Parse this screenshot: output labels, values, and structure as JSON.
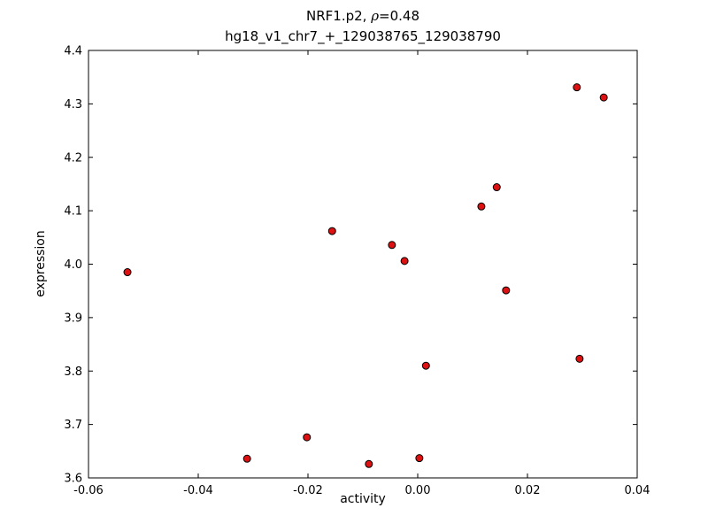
{
  "figure": {
    "title_prefix": "NRF1.p2, ",
    "title_rho": "ρ",
    "title_suffix": "=0.48",
    "subtitle": "hg18_v1_chr7_+_129038765_129038790",
    "xlabel": "activity",
    "ylabel": "expression"
  },
  "chart_data": {
    "type": "scatter",
    "title": "NRF1.p2, ρ=0.48",
    "subtitle": "hg18_v1_chr7_+_129038765_129038790",
    "xlabel": "activity",
    "ylabel": "expression",
    "xlim": [
      -0.06,
      0.04
    ],
    "ylim": [
      3.6,
      4.4
    ],
    "xticks": [
      -0.06,
      -0.04,
      -0.02,
      0.0,
      0.02,
      0.04
    ],
    "xtick_labels": [
      "-0.06",
      "-0.04",
      "-0.02",
      "0.00",
      "0.02",
      "0.04"
    ],
    "yticks": [
      3.6,
      3.7,
      3.8,
      3.9,
      4.0,
      4.1,
      4.2,
      4.3,
      4.4
    ],
    "ytick_labels": [
      "3.6",
      "3.7",
      "3.8",
      "3.9",
      "4.0",
      "4.1",
      "4.2",
      "4.3",
      "4.4"
    ],
    "grid": false,
    "legend": null,
    "marker": {
      "shape": "circle",
      "fill": "#dd1111",
      "edge": "#000000",
      "radius": 4
    },
    "points": [
      {
        "x": -0.0529,
        "y": 3.985
      },
      {
        "x": -0.0311,
        "y": 3.636
      },
      {
        "x": -0.0202,
        "y": 3.676
      },
      {
        "x": -0.0156,
        "y": 4.062
      },
      {
        "x": -0.0089,
        "y": 3.626
      },
      {
        "x": -0.0047,
        "y": 4.036
      },
      {
        "x": -0.0024,
        "y": 4.006
      },
      {
        "x": 0.0003,
        "y": 3.637
      },
      {
        "x": 0.0015,
        "y": 3.81
      },
      {
        "x": 0.0116,
        "y": 4.108
      },
      {
        "x": 0.0144,
        "y": 4.144
      },
      {
        "x": 0.0161,
        "y": 3.951
      },
      {
        "x": 0.029,
        "y": 4.331
      },
      {
        "x": 0.0295,
        "y": 3.823
      },
      {
        "x": 0.0339,
        "y": 4.312
      }
    ]
  }
}
